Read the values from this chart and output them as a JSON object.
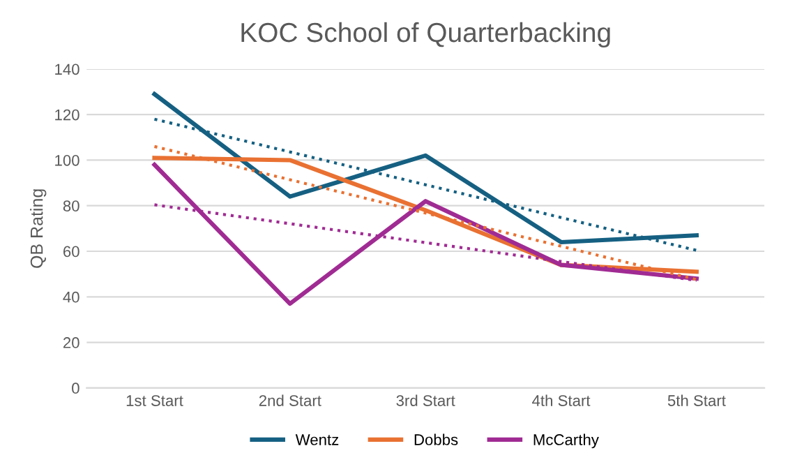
{
  "chart_data": {
    "type": "line",
    "title": "KOC School of Quarterbacking",
    "ylabel": "QB Rating",
    "categories": [
      "1st Start",
      "2nd Start",
      "3rd Start",
      "4th Start",
      "5th Start"
    ],
    "series": [
      {
        "name": "Wentz",
        "color": "#156082",
        "values": [
          129,
          84,
          102,
          64,
          67
        ]
      },
      {
        "name": "Dobbs",
        "color": "#e97132",
        "values": [
          101,
          100,
          78,
          54,
          51
        ]
      },
      {
        "name": "McCarthy",
        "color": "#a02b93",
        "values": [
          98,
          37,
          82,
          54,
          48
        ]
      },
      {
        "color": "#156082",
        "values": [
          118,
          103.6,
          89.2,
          74.8,
          60.4
        ],
        "line_style": "dotted"
      },
      {
        "color": "#e97132",
        "values": [
          106,
          91.4,
          76.8,
          62.2,
          47.6
        ],
        "line_style": "dotted"
      },
      {
        "color": "#a02b93",
        "values": [
          80.4,
          72.1,
          63.8,
          55.5,
          47.2
        ],
        "line_style": "dotted"
      }
    ],
    "ylim": [
      0,
      140
    ],
    "yticks": [
      0,
      20,
      40,
      60,
      80,
      100,
      120,
      140
    ],
    "grid": "y",
    "legend": "bottom",
    "line_style": "solid",
    "marker": "none"
  }
}
